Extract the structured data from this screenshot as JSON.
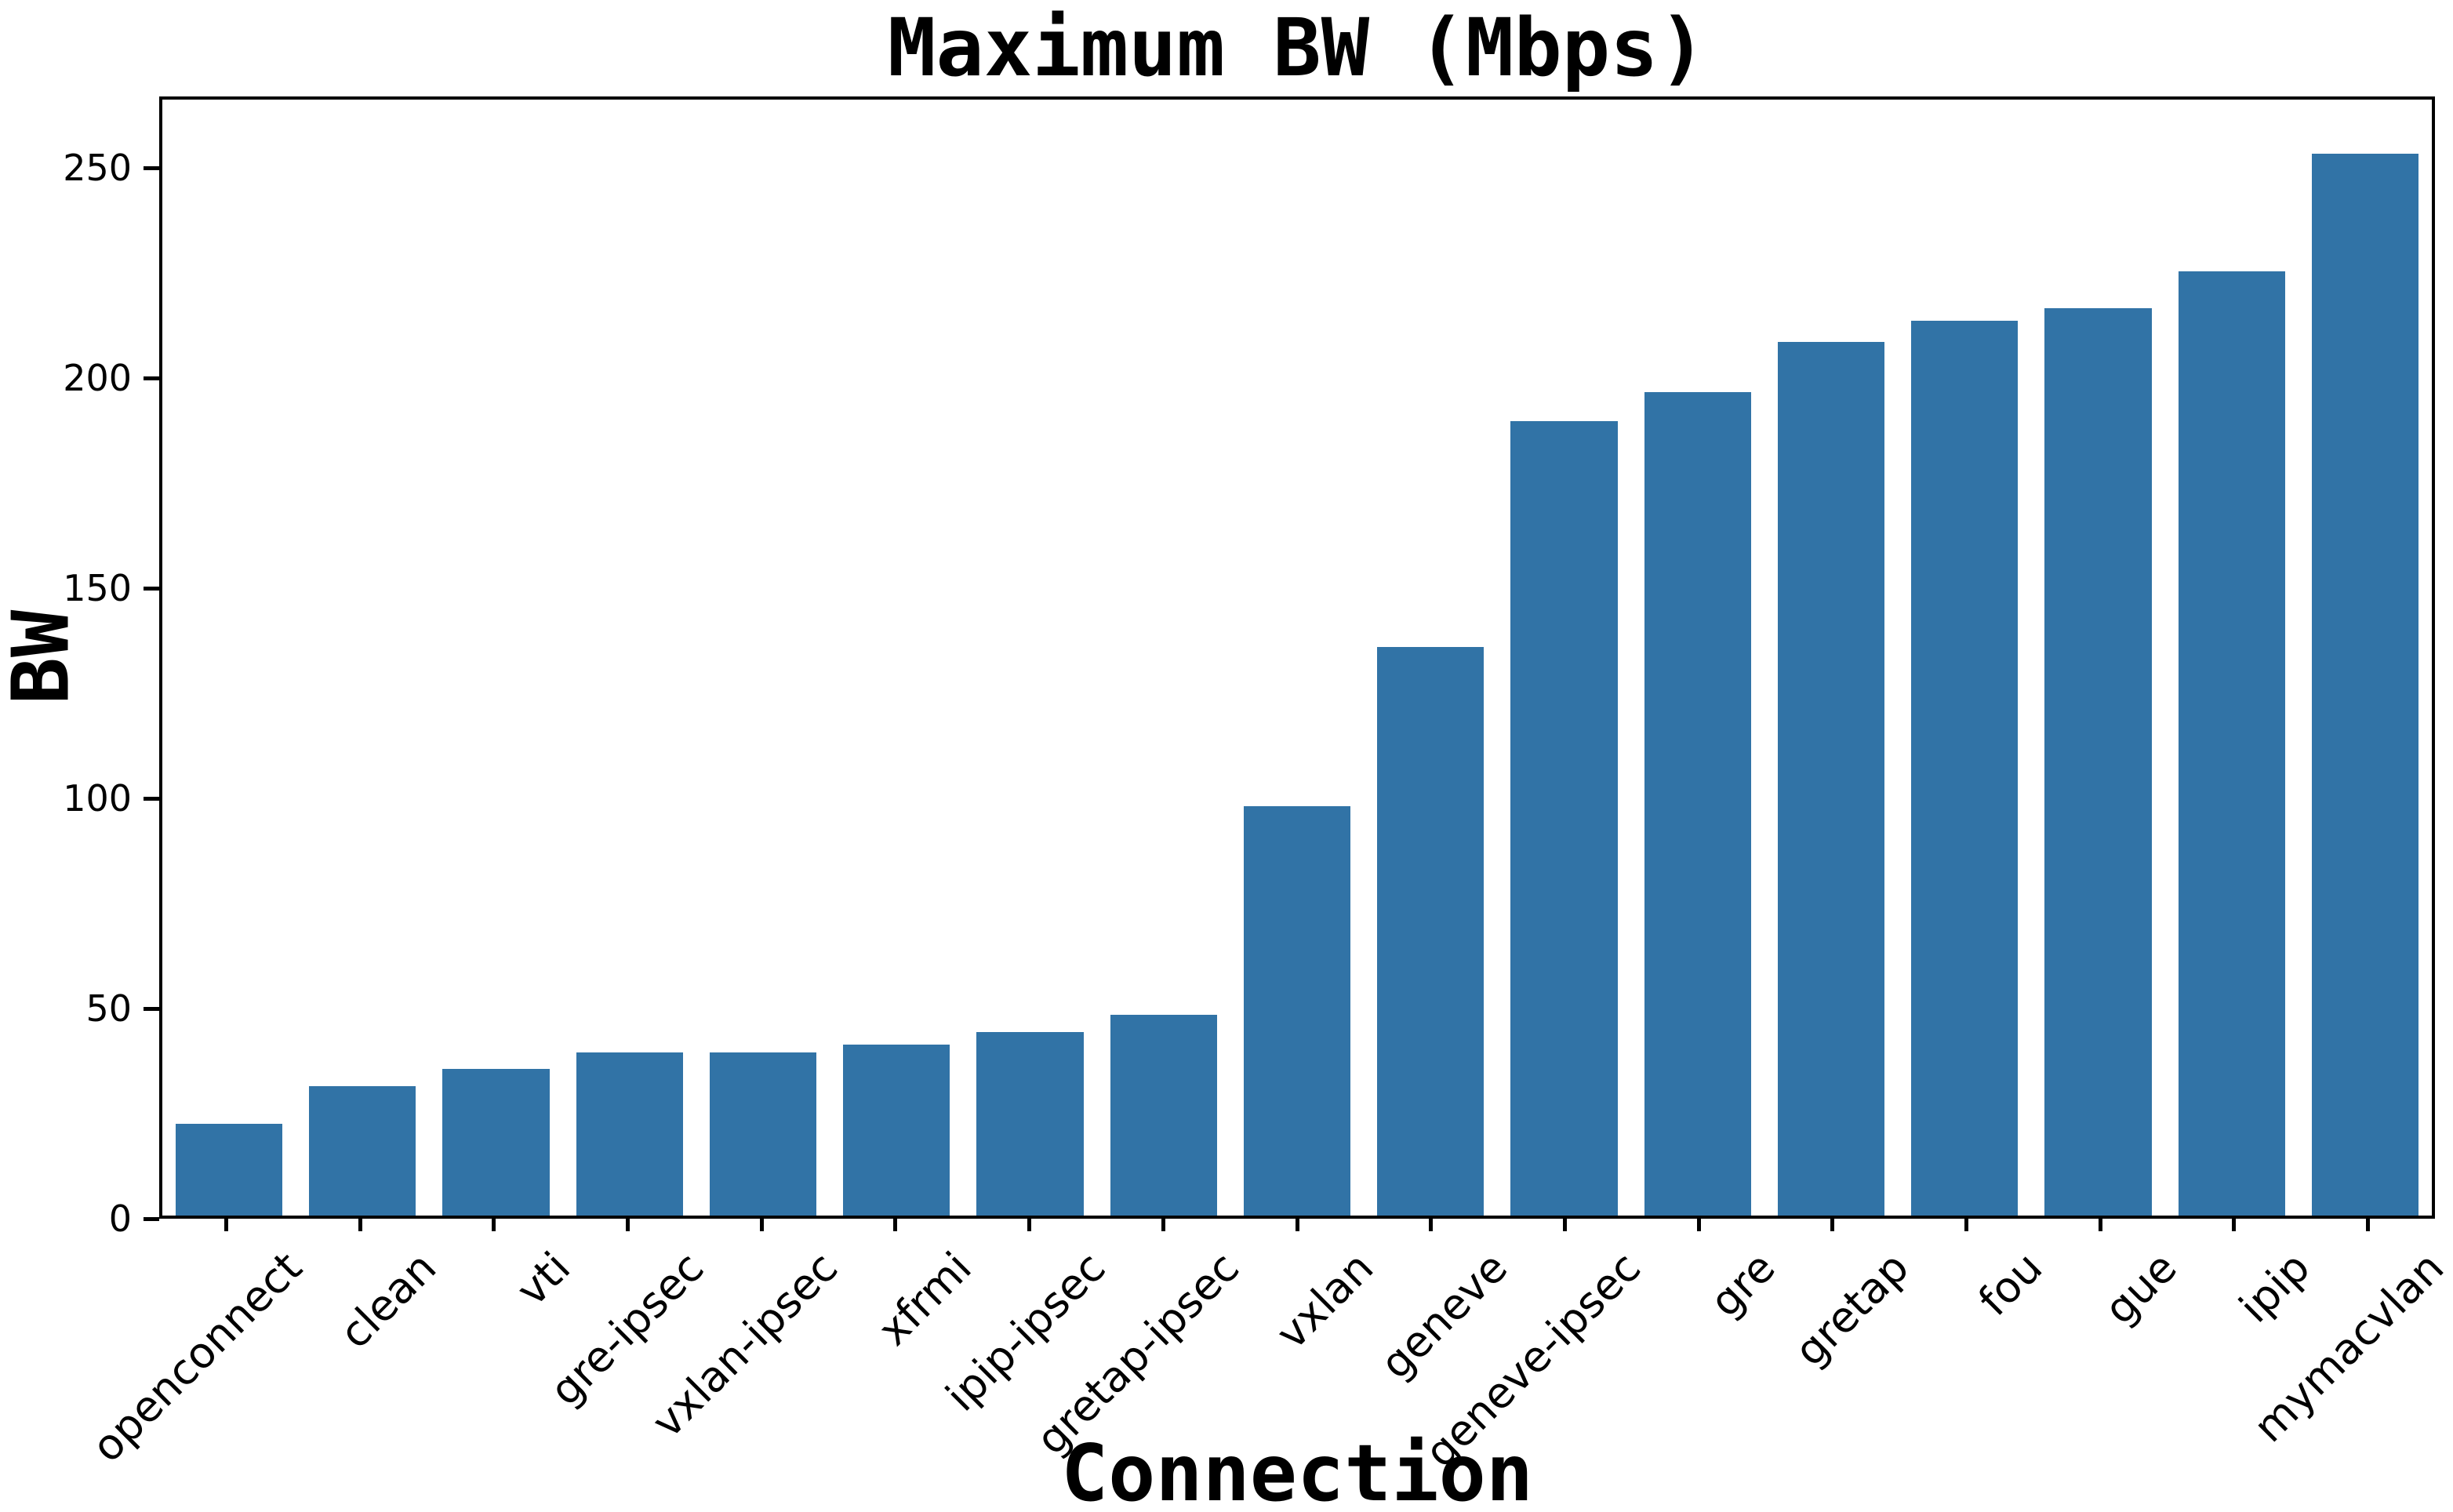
{
  "chart_data": {
    "type": "bar",
    "title": "Maximum BW (Mbps)",
    "xlabel": "Connection",
    "ylabel": "BW",
    "categories": [
      "openconnect",
      "clean",
      "vti",
      "gre-ipsec",
      "vxlan-ipsec",
      "xfrmi",
      "ipip-ipsec",
      "gretap-ipsec",
      "vxlan",
      "geneve",
      "geneve-ipsec",
      "gre",
      "gretap",
      "fou",
      "gue",
      "ipip",
      "mymacvlan"
    ],
    "values": [
      22,
      31,
      35,
      39,
      39,
      41,
      44,
      48,
      98,
      136,
      190,
      197,
      209,
      214,
      217,
      226,
      254
    ],
    "yticks": [
      0,
      50,
      100,
      150,
      200,
      250
    ],
    "ylim": [
      0,
      267
    ],
    "bar_color": "#3173a6",
    "axis_color": "#000000",
    "background_color": "#ffffff",
    "grid": false,
    "legend": null,
    "bar_width_fraction": 0.8,
    "xtick_rotation_deg": 45
  }
}
